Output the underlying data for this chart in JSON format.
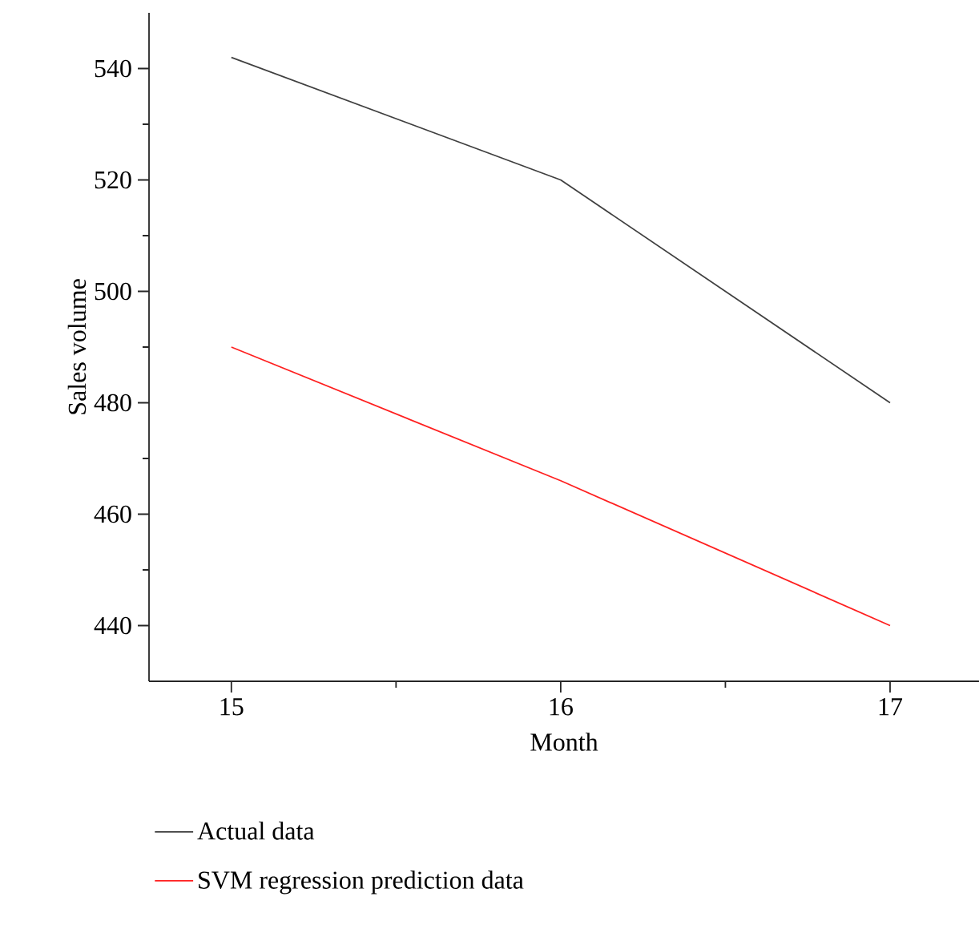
{
  "chart_data": {
    "type": "line",
    "xlabel": "Month",
    "ylabel": "Sales volume",
    "x": [
      15,
      16,
      17
    ],
    "xlim": [
      14.75,
      17.27
    ],
    "ylim": [
      430,
      550
    ],
    "xticks": [
      15,
      {
        "value": 15.5,
        "label": null
      },
      16,
      {
        "value": 16.5,
        "label": null
      },
      17
    ],
    "yticks": [
      440,
      {
        "value": 450,
        "label": null
      },
      460,
      {
        "value": 470,
        "label": null
      },
      480,
      {
        "value": 490,
        "label": null
      },
      500,
      {
        "value": 510,
        "label": null
      },
      520,
      {
        "value": 530,
        "label": null
      },
      540
    ],
    "legend": "bottom",
    "grid": false,
    "line_style": "solid",
    "series": [
      {
        "name": "Actual data",
        "color": "#404040",
        "values": [
          542,
          520,
          480
        ]
      },
      {
        "name": "SVM regression prediction data",
        "color": "#ff2020",
        "values": [
          490,
          466,
          440
        ]
      }
    ]
  }
}
